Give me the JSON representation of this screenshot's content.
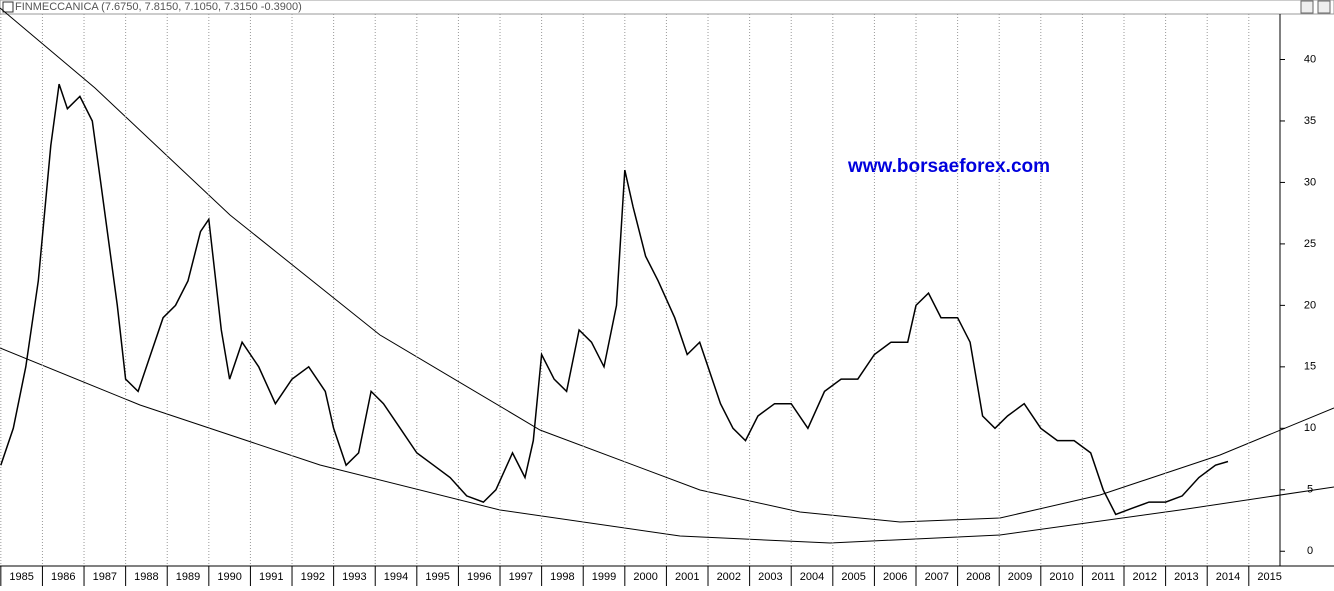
{
  "chart_data": {
    "type": "line",
    "title": "FINMECCANICA (7.6750, 7.8150, 7.1050, 7.3150 -0.3900)",
    "annotation": "www.borsaeforex.com",
    "color": "#000000",
    "x": [
      1985.0,
      1985.3,
      1985.6,
      1985.9,
      1986.2,
      1986.4,
      1986.6,
      1986.9,
      1987.2,
      1987.4,
      1987.6,
      1987.8,
      1988.0,
      1988.3,
      1988.6,
      1988.9,
      1989.2,
      1989.5,
      1989.8,
      1990.0,
      1990.3,
      1990.5,
      1990.8,
      1991.2,
      1991.6,
      1992.0,
      1992.4,
      1992.8,
      1993.0,
      1993.3,
      1993.6,
      1993.9,
      1994.2,
      1994.6,
      1995.0,
      1995.4,
      1995.8,
      1996.2,
      1996.6,
      1996.9,
      1997.3,
      1997.6,
      1997.8,
      1998.0,
      1998.3,
      1998.6,
      1998.9,
      1999.2,
      1999.5,
      1999.8,
      2000.0,
      2000.2,
      2000.5,
      2000.8,
      2001.2,
      2001.5,
      2001.8,
      2002.0,
      2002.3,
      2002.6,
      2002.9,
      2003.2,
      2003.6,
      2004.0,
      2004.4,
      2004.8,
      2005.2,
      2005.6,
      2006.0,
      2006.4,
      2006.8,
      2007.0,
      2007.3,
      2007.6,
      2008.0,
      2008.3,
      2008.6,
      2008.9,
      2009.2,
      2009.6,
      2010.0,
      2010.4,
      2010.8,
      2011.2,
      2011.5,
      2011.8,
      2012.2,
      2012.6,
      2013.0,
      2013.4,
      2013.8,
      2014.2,
      2014.5
    ],
    "values": [
      7,
      10,
      15,
      22,
      33,
      38,
      36,
      37,
      35,
      30,
      25,
      20,
      14,
      13,
      16,
      19,
      20,
      22,
      26,
      27,
      18,
      14,
      17,
      15,
      12,
      14,
      15,
      13,
      10,
      7,
      8,
      13,
      12,
      10,
      8,
      7,
      6,
      4.5,
      4,
      5,
      8,
      6,
      9,
      16,
      14,
      13,
      18,
      17,
      15,
      20,
      31,
      28,
      24,
      22,
      19,
      16,
      17,
      15,
      12,
      10,
      9,
      11,
      12,
      12,
      10,
      13,
      14,
      14,
      16,
      17,
      17,
      20,
      21,
      19,
      19,
      17,
      11,
      10,
      11,
      12,
      10,
      9,
      9,
      8,
      5,
      3,
      3.5,
      4,
      4,
      4.5,
      6,
      7,
      7.3
    ],
    "xlim": [
      1984.98,
      2015.75
    ],
    "ylim": [
      -1.2,
      43.7
    ],
    "yticks": [
      0,
      5,
      10,
      15,
      20,
      25,
      30,
      35,
      40
    ],
    "xticks": [
      1985,
      1986,
      1987,
      1988,
      1989,
      1990,
      1991,
      1992,
      1993,
      1994,
      1995,
      1996,
      1997,
      1998,
      1999,
      2000,
      2001,
      2002,
      2003,
      2004,
      2005,
      2006,
      2007,
      2008,
      2009,
      2010,
      2011,
      2012,
      2013,
      2014,
      2015
    ],
    "grid": true
  }
}
